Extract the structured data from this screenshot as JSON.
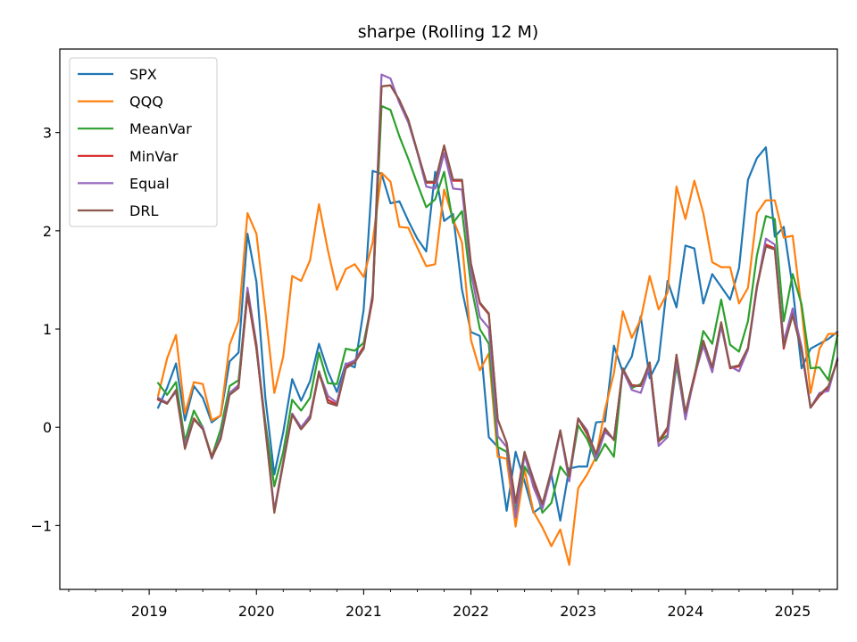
{
  "chart_data": {
    "type": "line",
    "title": "sharpe (Rolling 12 M)",
    "xlabel": "",
    "ylabel": "",
    "x_ticks": [
      "2019",
      "2020",
      "2021",
      "2022",
      "2023",
      "2024",
      "2025"
    ],
    "y_ticks": [
      "−1",
      "0",
      "1",
      "2",
      "3"
    ],
    "y_tick_values": [
      -1,
      0,
      1,
      2,
      3
    ],
    "xlim": [
      "2018-03",
      "2025-06"
    ],
    "ylim": [
      -1.65,
      3.85
    ],
    "grid": false,
    "legend_position": "upper left",
    "x": [
      "2019-02",
      "2019-03",
      "2019-04",
      "2019-05",
      "2019-06",
      "2019-07",
      "2019-08",
      "2019-09",
      "2019-10",
      "2019-11",
      "2019-12",
      "2020-01",
      "2020-02",
      "2020-03",
      "2020-04",
      "2020-05",
      "2020-06",
      "2020-07",
      "2020-08",
      "2020-09",
      "2020-10",
      "2020-11",
      "2020-12",
      "2021-01",
      "2021-02",
      "2021-03",
      "2021-04",
      "2021-05",
      "2021-06",
      "2021-07",
      "2021-08",
      "2021-09",
      "2021-10",
      "2021-11",
      "2021-12",
      "2022-01",
      "2022-02",
      "2022-03",
      "2022-04",
      "2022-05",
      "2022-06",
      "2022-07",
      "2022-08",
      "2022-09",
      "2022-10",
      "2022-11",
      "2022-12",
      "2023-01",
      "2023-02",
      "2023-03",
      "2023-04",
      "2023-05",
      "2023-06",
      "2023-07",
      "2023-08",
      "2023-09",
      "2023-10",
      "2023-11",
      "2023-12",
      "2024-01",
      "2024-02",
      "2024-03",
      "2024-04",
      "2024-05",
      "2024-06",
      "2024-07",
      "2024-08",
      "2024-09",
      "2024-10",
      "2024-11",
      "2024-12",
      "2025-01",
      "2025-02",
      "2025-03",
      "2025-04",
      "2025-05",
      "2025-06"
    ],
    "series": [
      {
        "name": "SPX",
        "color": "#1f77b4",
        "values": [
          0.2,
          0.4,
          0.65,
          0.07,
          0.42,
          0.3,
          0.05,
          0.12,
          0.67,
          0.76,
          1.97,
          1.48,
          0.3,
          -0.48,
          -0.05,
          0.49,
          0.27,
          0.47,
          0.85,
          0.57,
          0.36,
          0.65,
          0.61,
          1.2,
          2.61,
          2.58,
          2.28,
          2.3,
          2.1,
          1.92,
          1.79,
          2.6,
          2.1,
          2.17,
          1.4,
          0.97,
          0.93,
          -0.1,
          -0.2,
          -0.85,
          -0.25,
          -0.55,
          -0.87,
          -0.8,
          -0.48,
          -0.95,
          -0.42,
          -0.4,
          -0.4,
          0.05,
          0.06,
          0.83,
          0.56,
          0.72,
          1.13,
          0.5,
          0.68,
          1.49,
          1.22,
          1.85,
          1.82,
          1.26,
          1.56,
          1.43,
          1.3,
          1.62,
          2.52,
          2.74,
          2.85,
          1.94,
          2.04,
          1.42,
          0.6,
          0.8,
          0.85,
          0.9,
          0.97
        ]
      },
      {
        "name": "QQQ",
        "color": "#ff7f0e",
        "values": [
          0.32,
          0.7,
          0.94,
          0.14,
          0.46,
          0.44,
          0.07,
          0.12,
          0.84,
          1.08,
          2.18,
          1.97,
          1.18,
          0.35,
          0.72,
          1.54,
          1.49,
          1.7,
          2.27,
          1.8,
          1.4,
          1.61,
          1.66,
          1.53,
          1.88,
          2.59,
          2.5,
          2.04,
          2.03,
          1.83,
          1.64,
          1.66,
          2.42,
          2.12,
          1.88,
          0.89,
          0.58,
          0.75,
          -0.3,
          -0.32,
          -1.01,
          -0.43,
          -0.86,
          -1.02,
          -1.21,
          -1.04,
          -1.4,
          -0.62,
          -0.48,
          -0.3,
          0.18,
          0.55,
          1.18,
          0.91,
          1.1,
          1.54,
          1.2,
          1.37,
          2.45,
          2.12,
          2.51,
          2.18,
          1.68,
          1.63,
          1.63,
          1.26,
          1.42,
          2.18,
          2.31,
          2.31,
          1.93,
          1.95,
          1.2,
          0.35,
          0.8,
          0.95,
          0.95
        ]
      },
      {
        "name": "MeanVar",
        "color": "#2ca02c",
        "values": [
          0.45,
          0.33,
          0.46,
          -0.14,
          0.17,
          0.0,
          -0.3,
          -0.02,
          0.42,
          0.48,
          1.4,
          0.8,
          0.05,
          -0.6,
          -0.25,
          0.28,
          0.17,
          0.3,
          0.76,
          0.45,
          0.44,
          0.8,
          0.78,
          0.86,
          1.32,
          3.27,
          3.23,
          2.96,
          2.73,
          2.48,
          2.24,
          2.32,
          2.6,
          2.08,
          2.2,
          1.45,
          1.0,
          0.85,
          -0.2,
          -0.25,
          -0.85,
          -0.4,
          -0.55,
          -0.87,
          -0.77,
          -0.4,
          -0.52,
          0.02,
          -0.12,
          -0.34,
          -0.17,
          -0.3,
          0.6,
          0.4,
          0.44,
          0.63,
          -0.14,
          -0.08,
          0.63,
          0.12,
          0.52,
          0.98,
          0.85,
          1.3,
          0.84,
          0.77,
          1.08,
          1.75,
          2.15,
          2.12,
          1.08,
          1.56,
          1.25,
          0.6,
          0.61,
          0.48,
          0.93
        ]
      },
      {
        "name": "MinVar",
        "color": "#d62728",
        "values": [
          0.28,
          0.24,
          0.37,
          -0.2,
          0.09,
          -0.01,
          -0.3,
          -0.1,
          0.35,
          0.42,
          1.35,
          0.8,
          0.0,
          -0.85,
          -0.35,
          0.13,
          -0.02,
          0.09,
          0.55,
          0.28,
          0.23,
          0.62,
          0.68,
          0.82,
          1.3,
          3.47,
          3.48,
          3.33,
          3.12,
          2.8,
          2.49,
          2.49,
          2.86,
          2.51,
          2.51,
          1.65,
          1.26,
          1.15,
          0.08,
          -0.16,
          -0.77,
          -0.26,
          -0.55,
          -0.8,
          -0.47,
          -0.04,
          -0.52,
          0.09,
          -0.07,
          -0.29,
          -0.02,
          -0.13,
          0.59,
          0.43,
          0.42,
          0.66,
          -0.15,
          -0.02,
          0.72,
          0.12,
          0.5,
          0.88,
          0.58,
          1.05,
          0.6,
          0.62,
          0.8,
          1.42,
          1.86,
          1.82,
          0.8,
          1.17,
          0.8,
          0.2,
          0.32,
          0.4,
          0.68
        ]
      },
      {
        "name": "Equal",
        "color": "#9467bd",
        "values": [
          0.3,
          0.25,
          0.36,
          -0.18,
          0.08,
          0.0,
          -0.32,
          -0.09,
          0.35,
          0.43,
          1.42,
          0.85,
          0.0,
          -0.85,
          -0.35,
          0.14,
          0.0,
          0.12,
          0.56,
          0.32,
          0.25,
          0.64,
          0.68,
          0.8,
          1.36,
          3.59,
          3.55,
          3.3,
          3.1,
          2.8,
          2.45,
          2.43,
          2.79,
          2.43,
          2.42,
          1.58,
          1.12,
          1.01,
          -0.09,
          -0.2,
          -0.92,
          -0.28,
          -0.61,
          -0.83,
          -0.48,
          -0.04,
          -0.55,
          0.09,
          -0.03,
          -0.32,
          -0.05,
          -0.12,
          0.58,
          0.38,
          0.35,
          0.62,
          -0.19,
          -0.1,
          0.68,
          0.08,
          0.52,
          0.83,
          0.56,
          1.03,
          0.62,
          0.57,
          0.79,
          1.42,
          1.92,
          1.86,
          0.87,
          1.21,
          0.82,
          0.2,
          0.35,
          0.37,
          0.7
        ]
      },
      {
        "name": "DRL",
        "color": "#8c564b",
        "values": [
          0.29,
          0.24,
          0.38,
          -0.22,
          0.08,
          -0.02,
          -0.31,
          -0.12,
          0.33,
          0.4,
          1.37,
          0.82,
          -0.02,
          -0.87,
          -0.37,
          0.13,
          -0.02,
          0.09,
          0.57,
          0.25,
          0.22,
          0.6,
          0.66,
          0.8,
          1.33,
          3.47,
          3.48,
          3.33,
          3.13,
          2.81,
          2.5,
          2.5,
          2.87,
          2.52,
          2.52,
          1.67,
          1.27,
          1.16,
          0.08,
          -0.16,
          -0.77,
          -0.25,
          -0.53,
          -0.78,
          -0.44,
          -0.03,
          -0.5,
          0.09,
          -0.05,
          -0.27,
          -0.01,
          -0.13,
          0.6,
          0.42,
          0.42,
          0.66,
          -0.14,
          0.0,
          0.74,
          0.15,
          0.53,
          0.88,
          0.61,
          1.07,
          0.61,
          0.63,
          0.81,
          1.44,
          1.84,
          1.81,
          0.82,
          1.14,
          0.78,
          0.2,
          0.33,
          0.42,
          0.68
        ]
      }
    ]
  }
}
